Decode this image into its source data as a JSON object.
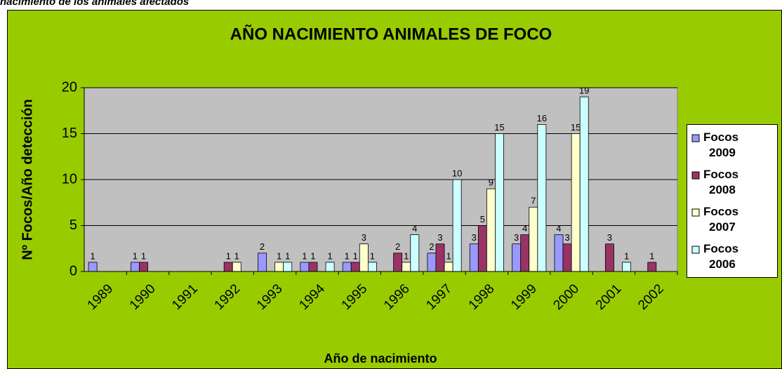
{
  "heading": "nacimiento de los animales afectados",
  "chart_data": {
    "type": "bar",
    "title": "AÑO NACIMIENTO ANIMALES DE FOCO",
    "x_label": "Año de nacimiento",
    "y_label": "Nº Focos/Año detección",
    "categories": [
      "1989",
      "1990",
      "1991",
      "1992",
      "1993",
      "1994",
      "1995",
      "1996",
      "1997",
      "1998",
      "1999",
      "2000",
      "2001",
      "2002"
    ],
    "series": [
      {
        "name": "Focos 2009",
        "color": "#9999ff",
        "values": [
          1,
          1,
          null,
          null,
          2,
          1,
          1,
          null,
          2,
          3,
          3,
          4,
          null,
          null
        ]
      },
      {
        "name": "Focos 2008",
        "color": "#993366",
        "values": [
          null,
          1,
          null,
          1,
          null,
          1,
          1,
          2,
          3,
          5,
          4,
          3,
          3,
          1
        ]
      },
      {
        "name": "Focos 2007",
        "color": "#ffffcc",
        "values": [
          null,
          null,
          null,
          1,
          1,
          null,
          3,
          1,
          1,
          9,
          7,
          15,
          null,
          null
        ]
      },
      {
        "name": "Focos 2006",
        "color": "#ccffff",
        "values": [
          null,
          null,
          null,
          null,
          1,
          1,
          1,
          4,
          10,
          15,
          16,
          19,
          1,
          null
        ]
      }
    ],
    "ylim": [
      0,
      20
    ],
    "yticks": [
      0,
      5,
      10,
      15,
      20
    ],
    "grid": true,
    "legend": "right"
  }
}
